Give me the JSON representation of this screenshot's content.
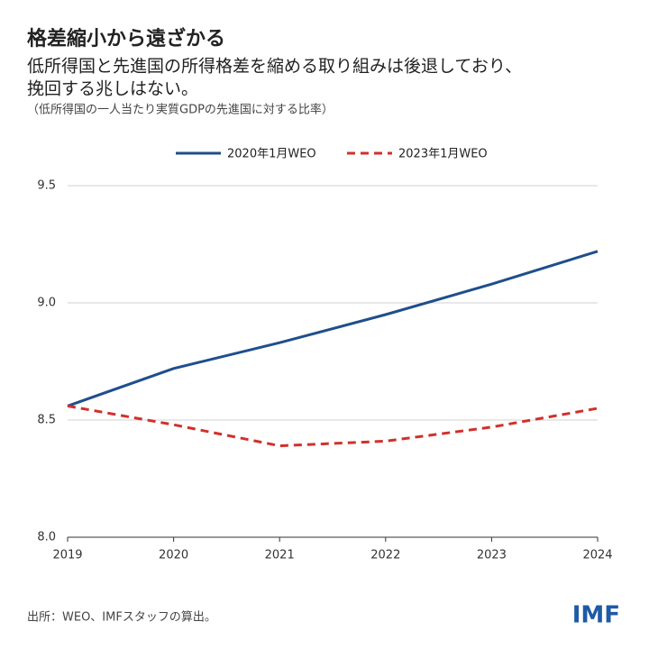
{
  "chart_data": {
    "type": "line",
    "title": "格差縮小から遠ざかる",
    "subtitle": [
      "低所得国と先進国の所得格差を縮める取り組みは後退しており、",
      "挽回する兆しはない。"
    ],
    "note": "（低所得国の一人当たり実質GDPの先進国に対する比率）",
    "x": [
      2019,
      2020,
      2021,
      2022,
      2023,
      2024
    ],
    "xlim": [
      2019,
      2024
    ],
    "xticks": [
      2019,
      2020,
      2021,
      2022,
      2023,
      2024
    ],
    "ylim": [
      8.0,
      9.5
    ],
    "yticks": [
      {
        "value": 8,
        "label": "8.0"
      },
      8.5,
      {
        "value": 9,
        "label": "9.0"
      },
      9.5
    ],
    "grid": true,
    "legend_position": "top",
    "series": [
      {
        "name": "2020年1月WEO",
        "color": "#1f4e8c",
        "line_style": "solid",
        "values": [
          8.56,
          8.72,
          8.83,
          8.95,
          9.08,
          9.22
        ]
      },
      {
        "name": "2023年1月WEO",
        "color": "#d0312d",
        "line_style": "dashed",
        "values": [
          8.56,
          8.48,
          8.39,
          8.41,
          8.47,
          8.55
        ]
      }
    ],
    "source": "出所：WEO、IMFスタッフの算出。",
    "logo": "IMF"
  }
}
